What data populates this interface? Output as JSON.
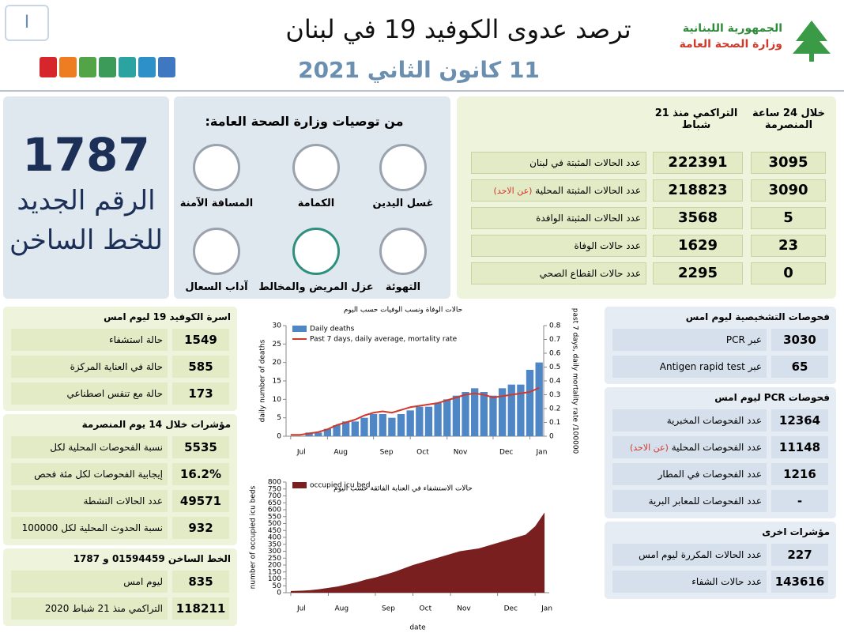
{
  "header": {
    "badge": "I",
    "title": "ترصد عدوى الكوفيد 19 في لبنان",
    "date": "11 كانون الثاني 2021",
    "republic": "الجمهورية اللبنانية",
    "ministry": "وزارة الصحة العامة"
  },
  "hotline_box": {
    "number": "1787",
    "line1": "الرقم الجديد",
    "line2": "للخط الساخن"
  },
  "advice": {
    "title": "من توصيات وزارة الصحة العامة:",
    "items": [
      "غسل اليدين",
      "الكمامة",
      "المسافة الآمنة",
      "التهوئة",
      "عزل المريض والمخالط",
      "آداب السعال"
    ]
  },
  "cases": {
    "col_day": "خلال 24 ساعة المنصرمة",
    "col_total": "التراكمي منذ 21 شباط",
    "rows": [
      {
        "label": "عدد الحالات المثبتة في لبنان",
        "total": 222391,
        "day": 3095
      },
      {
        "label": "عدد الحالات المثبتة المحلية",
        "note": "(عن الاحد)",
        "total": 218823,
        "day": 3090
      },
      {
        "label": "عدد الحالات المثبتة الوافدة",
        "total": 3568,
        "day": 5
      },
      {
        "label": "عدد حالات الوفاة",
        "total": 1629,
        "day": 23
      },
      {
        "label": "عدد حالات القطاع الصحي",
        "total": 2295,
        "day": 0
      }
    ]
  },
  "left_sections": [
    {
      "title": "اسرة الكوفيد 19 ليوم امس",
      "rows": [
        {
          "label": "حالة استشفاء",
          "value": 1549
        },
        {
          "label": "حالة في العناية المركزة",
          "value": 585
        },
        {
          "label": "حالة مع تنفس اصطناعي",
          "value": 173
        }
      ]
    },
    {
      "title": "مؤشرات خلال 14 يوم المنصرمة",
      "rows": [
        {
          "label": "نسبة الفحوصات المحلية لكل 100000",
          "value": 5535
        },
        {
          "label": "إيجابية الفحوصات لكل مئة فحص",
          "value": "16.2%"
        },
        {
          "label": "عدد الحالات النشطة",
          "value": 49571
        },
        {
          "label": "نسبة الحدوث المحلية لكل 100000",
          "value": 932
        }
      ]
    },
    {
      "title": "الخط الساخن 01594459 و 1787",
      "rows": [
        {
          "label": "ليوم امس",
          "value": 835
        },
        {
          "label": "التراكمي منذ 21 شباط 2020",
          "value": 118211
        }
      ]
    }
  ],
  "right_sections": [
    {
      "title": "فحوصات التشخيصية ليوم امس",
      "rows": [
        {
          "label": "عبر PCR",
          "value": 3030
        },
        {
          "label": "عبر Antigen rapid test",
          "value": 65
        }
      ]
    },
    {
      "title": "فحوصات PCR ليوم امس",
      "rows": [
        {
          "label": "عدد الفحوصات المخبرية",
          "value": 12364
        },
        {
          "label": "عدد الفحوصات المحلية",
          "note": "(عن الاحد)",
          "value": 11148
        },
        {
          "label": "عدد الفحوصات في المطار",
          "value": 1216
        },
        {
          "label": "عدد الفحوصات للمعابر البرية",
          "value": "-"
        }
      ]
    },
    {
      "title": "مؤشرات اخرى",
      "rows": [
        {
          "label": "عدد الحالات المكررة ليوم امس",
          "value": 227
        },
        {
          "label": "عدد حالات الشفاء",
          "value": 143616
        }
      ]
    }
  ],
  "chart_data": [
    {
      "type": "bar",
      "title": "حالات الوفاة ونسب الوفيات حسب اليوم",
      "ylabel": "daily number of deaths",
      "y2label": "past 7 days, daily mortality rate /100000",
      "categories": [
        "Jul",
        null,
        null,
        null,
        "Aug",
        null,
        null,
        null,
        null,
        "Sep",
        null,
        null,
        null,
        "Oct",
        null,
        null,
        null,
        "Nov",
        null,
        null,
        null,
        null,
        "Dec",
        null,
        null,
        null,
        "Jan",
        null
      ],
      "series": [
        {
          "name": "Daily deaths",
          "color": "#4f86c6",
          "values": [
            0,
            0,
            1,
            1,
            2,
            3,
            4,
            4,
            5,
            6,
            6,
            5,
            6,
            7,
            8,
            8,
            9,
            10,
            11,
            12,
            13,
            12,
            11,
            13,
            14,
            14,
            18,
            20
          ]
        },
        {
          "name": "Past 7 days, daily average, mortality rate",
          "color": "#d03a2c",
          "type": "line",
          "axis": "y2",
          "values": [
            0.01,
            0.01,
            0.02,
            0.03,
            0.05,
            0.08,
            0.1,
            0.12,
            0.15,
            0.17,
            0.18,
            0.17,
            0.19,
            0.21,
            0.22,
            0.23,
            0.24,
            0.26,
            0.28,
            0.3,
            0.31,
            0.3,
            0.28,
            0.29,
            0.3,
            0.31,
            0.32,
            0.35
          ]
        }
      ],
      "ylim": [
        0,
        30
      ],
      "yticks": [
        0,
        5,
        10,
        15,
        20,
        25,
        30
      ],
      "y2lim": [
        0,
        0.8
      ],
      "y2ticks": [
        0,
        0.1,
        0.2,
        0.3,
        0.4,
        0.5,
        0.6,
        0.7,
        0.8
      ]
    },
    {
      "type": "area",
      "title": "حالات الاستشفاء في العناية الفائقة حسب اليوم",
      "ylabel": "number of occupied icu beds",
      "xlabel": "date",
      "categories": [
        "Jul",
        null,
        null,
        null,
        "Aug",
        null,
        null,
        null,
        null,
        "Sep",
        null,
        null,
        null,
        "Oct",
        null,
        null,
        null,
        "Nov",
        null,
        null,
        null,
        null,
        "Dec",
        null,
        null,
        null,
        "Jan",
        null
      ],
      "series": [
        {
          "name": "occupied icu bed",
          "color": "#7a1f1f",
          "values": [
            12,
            14,
            18,
            25,
            35,
            45,
            60,
            75,
            95,
            110,
            130,
            150,
            175,
            200,
            220,
            240,
            260,
            280,
            300,
            310,
            320,
            340,
            360,
            380,
            400,
            420,
            480,
            580
          ]
        }
      ],
      "ylim": [
        0,
        800
      ],
      "yticks": [
        0,
        50,
        100,
        150,
        200,
        250,
        300,
        350,
        400,
        450,
        500,
        550,
        600,
        650,
        700,
        750,
        800
      ]
    }
  ]
}
